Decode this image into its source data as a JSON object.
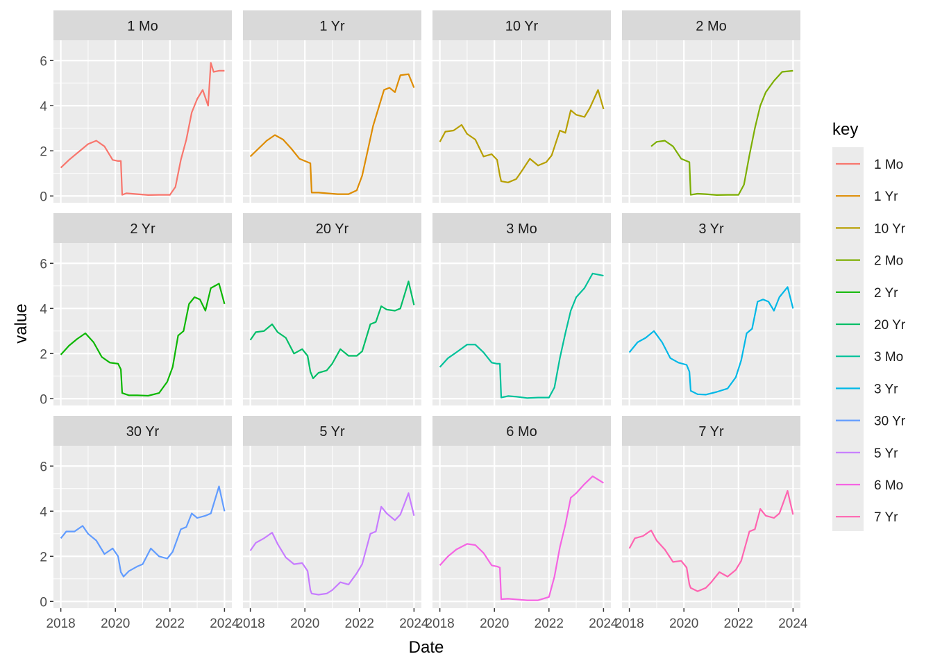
{
  "chart_data": {
    "type": "line",
    "facet": "key",
    "xlabel": "Date",
    "ylabel": "value",
    "legend_title": "key",
    "legend_position": "right",
    "grid": true,
    "xlim": [
      2018,
      2024
    ],
    "ylim": [
      0,
      6
    ],
    "x_ticks": [
      2018,
      2020,
      2022,
      2024
    ],
    "y_ticks": [
      0,
      2,
      4,
      6
    ],
    "series": [
      {
        "name": "1 Mo",
        "color": "#F8766D",
        "x": [
          2018.0,
          2018.3,
          2018.6,
          2019.0,
          2019.3,
          2019.6,
          2019.9,
          2020.1,
          2020.2,
          2020.25,
          2020.4,
          2020.8,
          2021.2,
          2021.6,
          2022.0,
          2022.2,
          2022.4,
          2022.6,
          2022.8,
          2023.0,
          2023.2,
          2023.4,
          2023.5,
          2023.6,
          2023.8,
          2024.0
        ],
        "values": [
          1.25,
          1.6,
          1.9,
          2.3,
          2.45,
          2.2,
          1.6,
          1.55,
          1.55,
          0.05,
          0.12,
          0.08,
          0.04,
          0.05,
          0.05,
          0.4,
          1.6,
          2.5,
          3.7,
          4.3,
          4.7,
          4.0,
          5.9,
          5.5,
          5.55,
          5.55
        ]
      },
      {
        "name": "1 Yr",
        "color": "#DE8C00",
        "x": [
          2018.0,
          2018.3,
          2018.6,
          2018.9,
          2019.2,
          2019.5,
          2019.8,
          2020.1,
          2020.2,
          2020.25,
          2020.5,
          2020.8,
          2021.2,
          2021.6,
          2021.9,
          2022.1,
          2022.3,
          2022.5,
          2022.7,
          2022.9,
          2023.1,
          2023.3,
          2023.5,
          2023.8,
          2024.0
        ],
        "values": [
          1.75,
          2.1,
          2.45,
          2.7,
          2.5,
          2.1,
          1.65,
          1.5,
          1.45,
          0.15,
          0.15,
          0.12,
          0.08,
          0.08,
          0.25,
          0.9,
          2.0,
          3.1,
          3.9,
          4.7,
          4.8,
          4.6,
          5.35,
          5.4,
          4.8
        ]
      },
      {
        "name": "10 Yr",
        "color": "#B79F00",
        "x": [
          2018.0,
          2018.2,
          2018.5,
          2018.8,
          2019.0,
          2019.3,
          2019.6,
          2019.9,
          2020.1,
          2020.2,
          2020.25,
          2020.5,
          2020.8,
          2021.0,
          2021.3,
          2021.6,
          2021.9,
          2022.1,
          2022.4,
          2022.6,
          2022.8,
          2023.0,
          2023.3,
          2023.5,
          2023.8,
          2024.0
        ],
        "values": [
          2.4,
          2.85,
          2.9,
          3.15,
          2.75,
          2.5,
          1.75,
          1.85,
          1.6,
          0.9,
          0.65,
          0.6,
          0.75,
          1.1,
          1.65,
          1.35,
          1.5,
          1.8,
          2.9,
          2.8,
          3.8,
          3.6,
          3.5,
          3.9,
          4.7,
          3.85
        ]
      },
      {
        "name": "2 Mo",
        "color": "#7CAE00",
        "x": [
          2018.8,
          2019.0,
          2019.3,
          2019.6,
          2019.9,
          2020.1,
          2020.2,
          2020.25,
          2020.5,
          2020.8,
          2021.2,
          2021.6,
          2022.0,
          2022.2,
          2022.4,
          2022.6,
          2022.8,
          2023.0,
          2023.3,
          2023.6,
          2024.0
        ],
        "values": [
          2.2,
          2.4,
          2.45,
          2.2,
          1.65,
          1.55,
          1.5,
          0.05,
          0.1,
          0.08,
          0.04,
          0.05,
          0.05,
          0.5,
          1.8,
          3.0,
          4.0,
          4.6,
          5.1,
          5.5,
          5.55
        ]
      },
      {
        "name": "2 Yr",
        "color": "#0CB702",
        "x": [
          2018.0,
          2018.3,
          2018.6,
          2018.9,
          2019.2,
          2019.5,
          2019.8,
          2020.1,
          2020.2,
          2020.25,
          2020.5,
          2020.8,
          2021.2,
          2021.6,
          2021.9,
          2022.1,
          2022.3,
          2022.5,
          2022.7,
          2022.9,
          2023.1,
          2023.3,
          2023.5,
          2023.8,
          2024.0
        ],
        "values": [
          1.95,
          2.35,
          2.65,
          2.9,
          2.5,
          1.85,
          1.6,
          1.55,
          1.3,
          0.25,
          0.15,
          0.15,
          0.13,
          0.25,
          0.75,
          1.4,
          2.8,
          3.0,
          4.2,
          4.5,
          4.4,
          3.9,
          4.9,
          5.1,
          4.2
        ]
      },
      {
        "name": "20 Yr",
        "color": "#00BE67",
        "x": [
          2018.0,
          2018.2,
          2018.5,
          2018.8,
          2019.0,
          2019.3,
          2019.6,
          2019.9,
          2020.1,
          2020.2,
          2020.3,
          2020.5,
          2020.8,
          2021.0,
          2021.3,
          2021.6,
          2021.9,
          2022.1,
          2022.4,
          2022.6,
          2022.8,
          2023.0,
          2023.3,
          2023.5,
          2023.8,
          2024.0
        ],
        "values": [
          2.6,
          2.95,
          3.0,
          3.3,
          2.95,
          2.7,
          2.0,
          2.2,
          1.9,
          1.2,
          0.9,
          1.15,
          1.25,
          1.55,
          2.2,
          1.9,
          1.9,
          2.1,
          3.3,
          3.4,
          4.1,
          3.95,
          3.9,
          4.0,
          5.2,
          4.15
        ]
      },
      {
        "name": "3 Mo",
        "color": "#00C19A",
        "x": [
          2018.0,
          2018.3,
          2018.6,
          2019.0,
          2019.3,
          2019.6,
          2019.9,
          2020.1,
          2020.2,
          2020.25,
          2020.5,
          2020.8,
          2021.2,
          2021.6,
          2022.0,
          2022.2,
          2022.4,
          2022.6,
          2022.8,
          2023.0,
          2023.3,
          2023.6,
          2024.0
        ],
        "values": [
          1.4,
          1.8,
          2.05,
          2.4,
          2.4,
          2.05,
          1.6,
          1.55,
          1.55,
          0.05,
          0.12,
          0.09,
          0.03,
          0.05,
          0.05,
          0.5,
          1.8,
          2.9,
          3.9,
          4.5,
          4.9,
          5.55,
          5.45
        ]
      },
      {
        "name": "3 Yr",
        "color": "#00B8E7",
        "x": [
          2018.0,
          2018.3,
          2018.6,
          2018.9,
          2019.2,
          2019.5,
          2019.8,
          2020.1,
          2020.2,
          2020.25,
          2020.5,
          2020.8,
          2021.2,
          2021.6,
          2021.9,
          2022.1,
          2022.3,
          2022.5,
          2022.7,
          2022.9,
          2023.1,
          2023.3,
          2023.5,
          2023.8,
          2024.0
        ],
        "values": [
          2.05,
          2.5,
          2.7,
          3.0,
          2.5,
          1.8,
          1.6,
          1.5,
          1.2,
          0.35,
          0.2,
          0.18,
          0.3,
          0.45,
          0.95,
          1.7,
          2.9,
          3.1,
          4.3,
          4.4,
          4.3,
          3.9,
          4.5,
          4.95,
          4.0
        ]
      },
      {
        "name": "30 Yr",
        "color": "#619CFF",
        "x": [
          2018.0,
          2018.2,
          2018.5,
          2018.8,
          2019.0,
          2019.3,
          2019.6,
          2019.9,
          2020.1,
          2020.2,
          2020.3,
          2020.5,
          2020.8,
          2021.0,
          2021.3,
          2021.6,
          2021.9,
          2022.1,
          2022.4,
          2022.6,
          2022.8,
          2023.0,
          2023.3,
          2023.5,
          2023.8,
          2024.0
        ],
        "values": [
          2.8,
          3.1,
          3.1,
          3.35,
          3.0,
          2.7,
          2.1,
          2.35,
          2.0,
          1.3,
          1.1,
          1.35,
          1.55,
          1.65,
          2.35,
          2.0,
          1.9,
          2.2,
          3.2,
          3.3,
          3.9,
          3.7,
          3.8,
          3.9,
          5.1,
          4.0
        ]
      },
      {
        "name": "5 Yr",
        "color": "#C77CFF",
        "x": [
          2018.0,
          2018.2,
          2018.5,
          2018.8,
          2019.0,
          2019.3,
          2019.6,
          2019.9,
          2020.1,
          2020.2,
          2020.25,
          2020.5,
          2020.8,
          2021.0,
          2021.3,
          2021.6,
          2021.9,
          2022.1,
          2022.4,
          2022.6,
          2022.8,
          2023.0,
          2023.3,
          2023.5,
          2023.8,
          2024.0
        ],
        "values": [
          2.25,
          2.6,
          2.8,
          3.05,
          2.55,
          1.95,
          1.65,
          1.7,
          1.35,
          0.5,
          0.35,
          0.3,
          0.35,
          0.5,
          0.85,
          0.75,
          1.25,
          1.65,
          3.0,
          3.1,
          4.2,
          3.9,
          3.6,
          3.85,
          4.8,
          3.8
        ]
      },
      {
        "name": "6 Mo",
        "color": "#F564E3",
        "x": [
          2018.0,
          2018.3,
          2018.6,
          2019.0,
          2019.3,
          2019.6,
          2019.9,
          2020.1,
          2020.2,
          2020.25,
          2020.5,
          2020.8,
          2021.2,
          2021.6,
          2022.0,
          2022.2,
          2022.4,
          2022.6,
          2022.8,
          2023.0,
          2023.3,
          2023.6,
          2024.0
        ],
        "values": [
          1.6,
          2.0,
          2.3,
          2.55,
          2.5,
          2.15,
          1.6,
          1.55,
          1.5,
          0.1,
          0.12,
          0.09,
          0.05,
          0.05,
          0.2,
          1.1,
          2.4,
          3.4,
          4.6,
          4.8,
          5.2,
          5.55,
          5.25
        ]
      },
      {
        "name": "7 Yr",
        "color": "#FF64B0",
        "x": [
          2018.0,
          2018.2,
          2018.5,
          2018.8,
          2019.0,
          2019.3,
          2019.6,
          2019.9,
          2020.1,
          2020.2,
          2020.25,
          2020.5,
          2020.8,
          2021.0,
          2021.3,
          2021.6,
          2021.9,
          2022.1,
          2022.4,
          2022.6,
          2022.8,
          2023.0,
          2023.3,
          2023.5,
          2023.8,
          2024.0
        ],
        "values": [
          2.35,
          2.8,
          2.9,
          3.15,
          2.7,
          2.3,
          1.75,
          1.8,
          1.5,
          0.75,
          0.6,
          0.45,
          0.6,
          0.85,
          1.3,
          1.1,
          1.4,
          1.8,
          3.1,
          3.2,
          4.1,
          3.8,
          3.7,
          3.9,
          4.9,
          3.85
        ]
      }
    ]
  }
}
